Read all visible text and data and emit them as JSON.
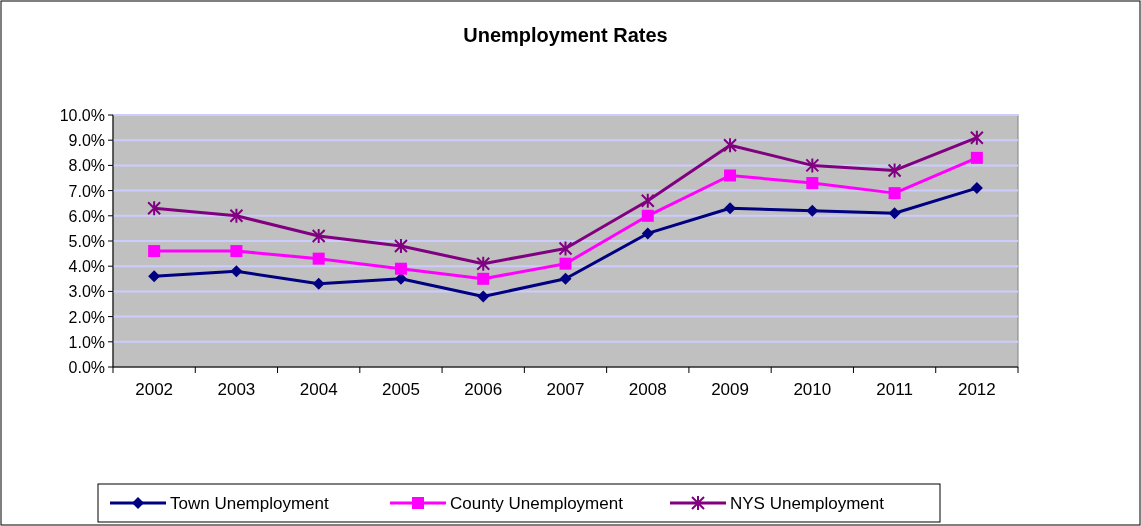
{
  "chart_data": {
    "type": "line",
    "title": "Unemployment Rates",
    "categories": [
      "2002",
      "2003",
      "2004",
      "2005",
      "2006",
      "2007",
      "2008",
      "2009",
      "2010",
      "2011",
      "2012"
    ],
    "series": [
      {
        "name": "Town Unemployment",
        "color": "#000080",
        "marker": "diamond",
        "values": [
          3.6,
          3.8,
          3.3,
          3.5,
          2.8,
          3.5,
          5.3,
          6.3,
          6.2,
          6.1,
          7.1
        ]
      },
      {
        "name": "County Unemployment",
        "color": "#ff00ff",
        "marker": "square",
        "values": [
          4.6,
          4.6,
          4.3,
          3.9,
          3.5,
          4.1,
          6.0,
          7.6,
          7.3,
          6.9,
          8.3
        ]
      },
      {
        "name": "NYS Unemployment",
        "color": "#800080",
        "marker": "cross",
        "values": [
          6.3,
          6.0,
          5.2,
          4.8,
          4.1,
          4.7,
          6.6,
          8.8,
          8.0,
          7.8,
          9.1
        ]
      }
    ],
    "ylim": [
      0,
      10
    ],
    "yticks": [
      {
        "value": 0,
        "label": "0.0%"
      },
      {
        "value": 1,
        "label": "1.0%"
      },
      {
        "value": 2,
        "label": "2.0%"
      },
      {
        "value": 3,
        "label": "3.0%"
      },
      {
        "value": 4,
        "label": "4.0%"
      },
      {
        "value": 5,
        "label": "5.0%"
      },
      {
        "value": 6,
        "label": "6.0%"
      },
      {
        "value": 7,
        "label": "7.0%"
      },
      {
        "value": 8,
        "label": "8.0%"
      },
      {
        "value": 9,
        "label": "9.0%"
      },
      {
        "value": 10,
        "label": "10.0%"
      }
    ],
    "grid": "y",
    "legend": "bottom"
  }
}
